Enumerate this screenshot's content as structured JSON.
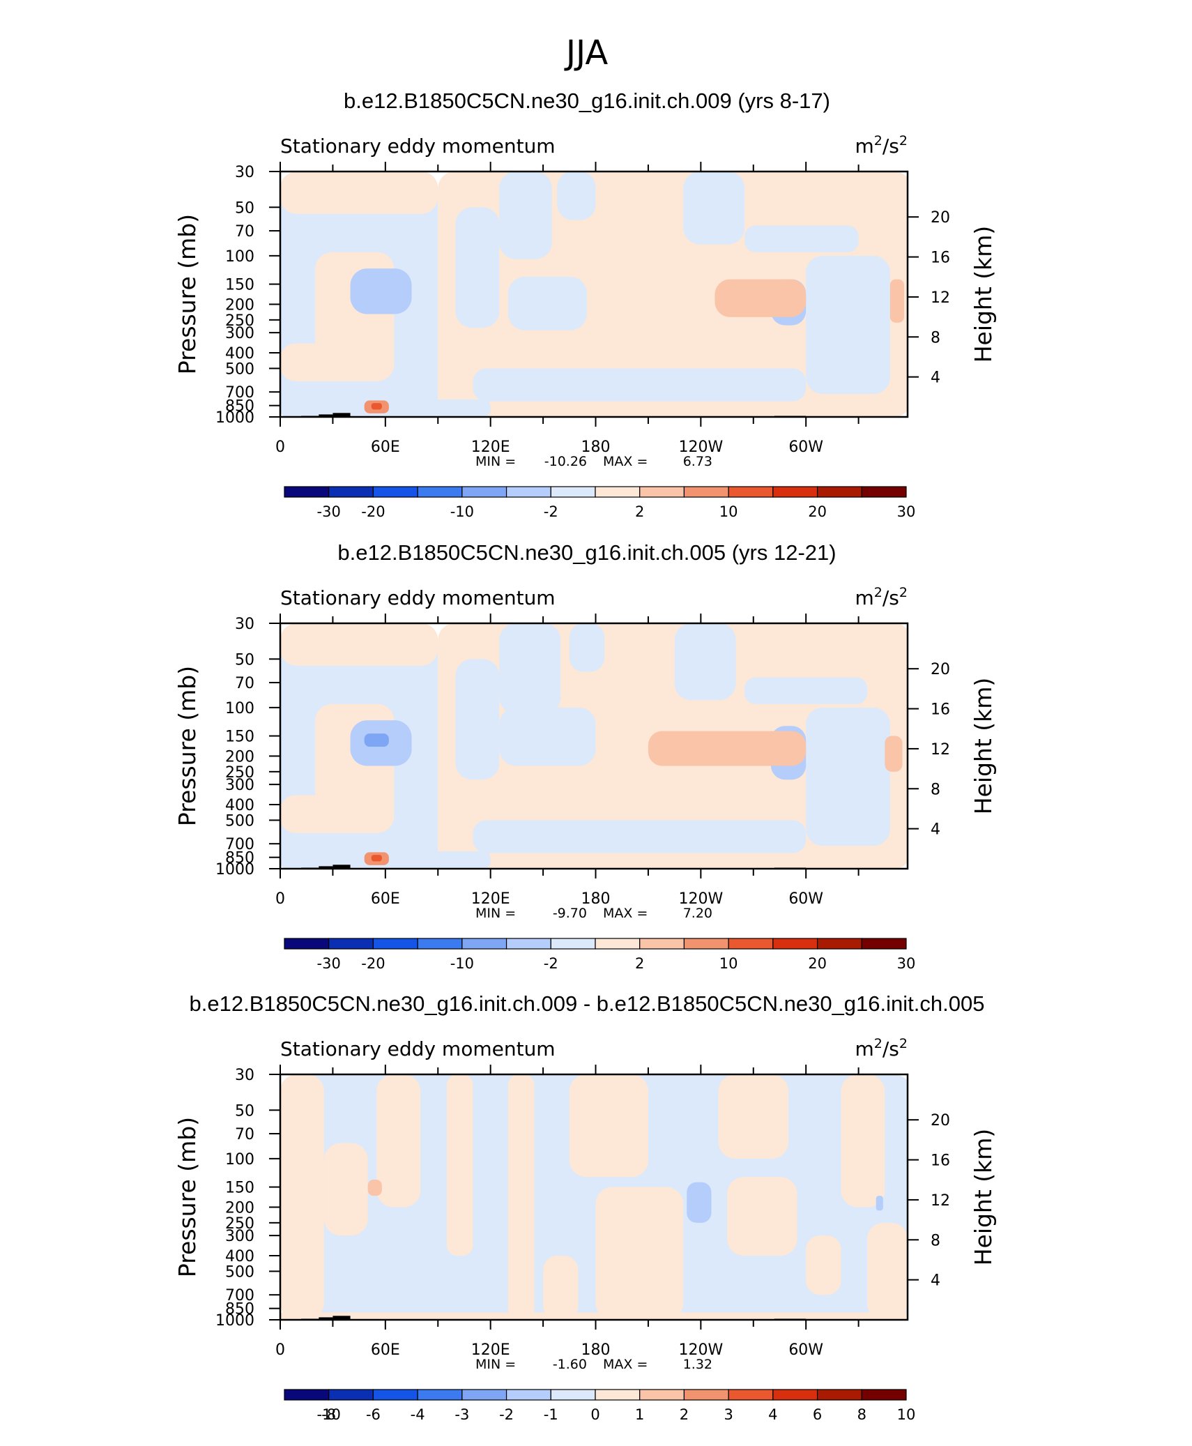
{
  "figure_title": "JJA",
  "colors": {
    "palette_12": [
      "#08087a",
      "#0a2fb3",
      "#1454e6",
      "#3c7af0",
      "#7fa6f5",
      "#b4cdfa",
      "#dce9fb",
      "#fde7d6",
      "#f9c4a8",
      "#f2936f",
      "#e9582e",
      "#d8300e",
      "#a91a03",
      "#740000"
    ],
    "palette_diff": [
      "#08087a",
      "#0a2fb3",
      "#1454e6",
      "#3c7af0",
      "#7fa6f5",
      "#b4cdfa",
      "#dce9fb",
      "#fde7d6",
      "#f9c4a8",
      "#f2936f",
      "#e9582e",
      "#d8300e",
      "#a91a03",
      "#740000"
    ],
    "topography": "#000000"
  },
  "chart_data": [
    {
      "type": "heatmap",
      "title": "b.e12.B1850C5CN.ne30_g16.init.ch.009 (yrs 8-17)",
      "left_string": "Stationary eddy momentum",
      "units_base": "m",
      "units_mid": "2",
      "units_slash": "/s",
      "units_exp": "2",
      "ylabel": "Pressure (mb)",
      "ylabel_right": "Height (km)",
      "xlabel": "",
      "x_ticks": [
        {
          "lon": 0,
          "label": "0"
        },
        {
          "lon": 60,
          "label": "60E"
        },
        {
          "lon": 120,
          "label": "120E"
        },
        {
          "lon": 180,
          "label": "180"
        },
        {
          "lon": 240,
          "label": "120W"
        },
        {
          "lon": 300,
          "label": "60W"
        }
      ],
      "p_ticks": [
        {
          "p": 30,
          "label": "30"
        },
        {
          "p": 50,
          "label": "50"
        },
        {
          "p": 70,
          "label": "70"
        },
        {
          "p": 100,
          "label": "100"
        },
        {
          "p": 150,
          "label": "150"
        },
        {
          "p": 200,
          "label": "200"
        },
        {
          "p": 250,
          "label": "250"
        },
        {
          "p": 300,
          "label": "300"
        },
        {
          "p": 400,
          "label": "400"
        },
        {
          "p": 500,
          "label": "500"
        },
        {
          "p": 700,
          "label": "700"
        },
        {
          "p": 850,
          "label": "850"
        },
        {
          "p": 1000,
          "label": "1000"
        }
      ],
      "height_ticks": [
        {
          "km": 4,
          "label": "4"
        },
        {
          "km": 8,
          "label": "8"
        },
        {
          "km": 12,
          "label": "12"
        },
        {
          "km": 16,
          "label": "16"
        },
        {
          "km": 20,
          "label": "20"
        }
      ],
      "xlim": [
        0,
        358
      ],
      "plim": [
        30,
        1000
      ],
      "min_label": "MIN =",
      "min_value": "-10.26",
      "max_label": "MAX =",
      "max_value": "6.73",
      "levels": [
        -30,
        -25,
        -20,
        -15,
        -10,
        -5,
        -2,
        0,
        2,
        5,
        10,
        15,
        20,
        25,
        30
      ],
      "colorbar_labels": [
        "-30",
        "-20",
        "-10",
        "-2",
        "2",
        "10",
        "20",
        "30"
      ],
      "colorbar_label_levels": [
        -30,
        -20,
        -10,
        -2,
        2,
        10,
        20,
        30
      ],
      "field_regions": [
        {
          "lon_min": 0,
          "lon_max": 90,
          "p_min": 30,
          "p_max": 1000,
          "bin": 6
        },
        {
          "lon_min": 90,
          "lon_max": 360,
          "p_min": 30,
          "p_max": 1000,
          "bin": 7
        },
        {
          "lon_min": 0,
          "lon_max": 90,
          "p_min": 30,
          "p_max": 55,
          "bin": 7
        },
        {
          "lon_min": 20,
          "lon_max": 65,
          "p_min": 95,
          "p_max": 600,
          "bin": 7
        },
        {
          "lon_min": 0,
          "lon_max": 40,
          "p_min": 350,
          "p_max": 600,
          "bin": 7
        },
        {
          "lon_min": 125,
          "lon_max": 155,
          "p_min": 30,
          "p_max": 105,
          "bin": 6
        },
        {
          "lon_min": 158,
          "lon_max": 180,
          "p_min": 30,
          "p_max": 60,
          "bin": 6
        },
        {
          "lon_min": 100,
          "lon_max": 125,
          "p_min": 50,
          "p_max": 280,
          "bin": 6
        },
        {
          "lon_min": 130,
          "lon_max": 175,
          "p_min": 135,
          "p_max": 290,
          "bin": 6
        },
        {
          "lon_min": 230,
          "lon_max": 265,
          "p_min": 30,
          "p_max": 85,
          "bin": 6
        },
        {
          "lon_min": 265,
          "lon_max": 330,
          "p_min": 65,
          "p_max": 95,
          "bin": 6
        },
        {
          "lon_min": 300,
          "lon_max": 348,
          "p_min": 100,
          "p_max": 720,
          "bin": 6
        },
        {
          "lon_min": 110,
          "lon_max": 300,
          "p_min": 500,
          "p_max": 800,
          "bin": 6
        },
        {
          "lon_min": 0,
          "lon_max": 120,
          "p_min": 780,
          "p_max": 1000,
          "bin": 6
        },
        {
          "lon_min": 40,
          "lon_max": 75,
          "p_min": 120,
          "p_max": 230,
          "bin": 5
        },
        {
          "lon_min": 280,
          "lon_max": 300,
          "p_min": 140,
          "p_max": 270,
          "bin": 5
        },
        {
          "lon_min": 248,
          "lon_max": 300,
          "p_min": 140,
          "p_max": 240,
          "bin": 8
        },
        {
          "lon_min": 348,
          "lon_max": 356,
          "p_min": 140,
          "p_max": 260,
          "bin": 8
        },
        {
          "lon_min": 48,
          "lon_max": 62,
          "p_min": 790,
          "p_max": 950,
          "bin": 9
        },
        {
          "lon_min": 52,
          "lon_max": 58,
          "p_min": 820,
          "p_max": 900,
          "bin": 10
        }
      ],
      "topography": [
        {
          "lon_min": 12,
          "lon_max": 22,
          "p_top": 985
        },
        {
          "lon_min": 22,
          "lon_max": 30,
          "p_top": 965
        },
        {
          "lon_min": 30,
          "lon_max": 40,
          "p_top": 945
        },
        {
          "lon_min": 282,
          "lon_max": 300,
          "p_top": 985
        }
      ]
    },
    {
      "type": "heatmap",
      "title": "b.e12.B1850C5CN.ne30_g16.init.ch.005 (yrs 12-21)",
      "left_string": "Stationary eddy momentum",
      "units_base": "m",
      "units_mid": "2",
      "units_slash": "/s",
      "units_exp": "2",
      "ylabel": "Pressure (mb)",
      "ylabel_right": "Height (km)",
      "xlabel": "",
      "x_ticks": [
        {
          "lon": 0,
          "label": "0"
        },
        {
          "lon": 60,
          "label": "60E"
        },
        {
          "lon": 120,
          "label": "120E"
        },
        {
          "lon": 180,
          "label": "180"
        },
        {
          "lon": 240,
          "label": "120W"
        },
        {
          "lon": 300,
          "label": "60W"
        }
      ],
      "p_ticks": [
        {
          "p": 30,
          "label": "30"
        },
        {
          "p": 50,
          "label": "50"
        },
        {
          "p": 70,
          "label": "70"
        },
        {
          "p": 100,
          "label": "100"
        },
        {
          "p": 150,
          "label": "150"
        },
        {
          "p": 200,
          "label": "200"
        },
        {
          "p": 250,
          "label": "250"
        },
        {
          "p": 300,
          "label": "300"
        },
        {
          "p": 400,
          "label": "400"
        },
        {
          "p": 500,
          "label": "500"
        },
        {
          "p": 700,
          "label": "700"
        },
        {
          "p": 850,
          "label": "850"
        },
        {
          "p": 1000,
          "label": "1000"
        }
      ],
      "height_ticks": [
        {
          "km": 4,
          "label": "4"
        },
        {
          "km": 8,
          "label": "8"
        },
        {
          "km": 12,
          "label": "12"
        },
        {
          "km": 16,
          "label": "16"
        },
        {
          "km": 20,
          "label": "20"
        }
      ],
      "xlim": [
        0,
        358
      ],
      "plim": [
        30,
        1000
      ],
      "min_label": "MIN =",
      "min_value": "-9.70",
      "max_label": "MAX =",
      "max_value": "7.20",
      "levels": [
        -30,
        -25,
        -20,
        -15,
        -10,
        -5,
        -2,
        0,
        2,
        5,
        10,
        15,
        20,
        25,
        30
      ],
      "colorbar_labels": [
        "-30",
        "-20",
        "-10",
        "-2",
        "2",
        "10",
        "20",
        "30"
      ],
      "colorbar_label_levels": [
        -30,
        -20,
        -10,
        -2,
        2,
        10,
        20,
        30
      ],
      "field_regions": [
        {
          "lon_min": 0,
          "lon_max": 90,
          "p_min": 30,
          "p_max": 1000,
          "bin": 6
        },
        {
          "lon_min": 90,
          "lon_max": 360,
          "p_min": 30,
          "p_max": 1000,
          "bin": 7
        },
        {
          "lon_min": 0,
          "lon_max": 90,
          "p_min": 30,
          "p_max": 55,
          "bin": 7
        },
        {
          "lon_min": 20,
          "lon_max": 65,
          "p_min": 95,
          "p_max": 600,
          "bin": 7
        },
        {
          "lon_min": 0,
          "lon_max": 40,
          "p_min": 350,
          "p_max": 600,
          "bin": 7
        },
        {
          "lon_min": 125,
          "lon_max": 160,
          "p_min": 30,
          "p_max": 110,
          "bin": 6
        },
        {
          "lon_min": 165,
          "lon_max": 185,
          "p_min": 30,
          "p_max": 60,
          "bin": 6
        },
        {
          "lon_min": 100,
          "lon_max": 125,
          "p_min": 50,
          "p_max": 280,
          "bin": 6
        },
        {
          "lon_min": 125,
          "lon_max": 180,
          "p_min": 100,
          "p_max": 230,
          "bin": 6
        },
        {
          "lon_min": 225,
          "lon_max": 260,
          "p_min": 30,
          "p_max": 90,
          "bin": 6
        },
        {
          "lon_min": 265,
          "lon_max": 335,
          "p_min": 65,
          "p_max": 95,
          "bin": 6
        },
        {
          "lon_min": 300,
          "lon_max": 348,
          "p_min": 100,
          "p_max": 720,
          "bin": 6
        },
        {
          "lon_min": 110,
          "lon_max": 300,
          "p_min": 500,
          "p_max": 800,
          "bin": 6
        },
        {
          "lon_min": 0,
          "lon_max": 120,
          "p_min": 780,
          "p_max": 1000,
          "bin": 6
        },
        {
          "lon_min": 40,
          "lon_max": 75,
          "p_min": 120,
          "p_max": 230,
          "bin": 5
        },
        {
          "lon_min": 48,
          "lon_max": 62,
          "p_min": 145,
          "p_max": 175,
          "bin": 4
        },
        {
          "lon_min": 280,
          "lon_max": 300,
          "p_min": 130,
          "p_max": 280,
          "bin": 5
        },
        {
          "lon_min": 210,
          "lon_max": 300,
          "p_min": 140,
          "p_max": 230,
          "bin": 8
        },
        {
          "lon_min": 345,
          "lon_max": 355,
          "p_min": 150,
          "p_max": 250,
          "bin": 8
        },
        {
          "lon_min": 48,
          "lon_max": 62,
          "p_min": 790,
          "p_max": 950,
          "bin": 9
        },
        {
          "lon_min": 52,
          "lon_max": 58,
          "p_min": 820,
          "p_max": 900,
          "bin": 10
        }
      ],
      "topography": [
        {
          "lon_min": 12,
          "lon_max": 22,
          "p_top": 985
        },
        {
          "lon_min": 22,
          "lon_max": 30,
          "p_top": 965
        },
        {
          "lon_min": 30,
          "lon_max": 40,
          "p_top": 945
        },
        {
          "lon_min": 282,
          "lon_max": 300,
          "p_top": 985
        }
      ]
    },
    {
      "type": "heatmap",
      "title": "b.e12.B1850C5CN.ne30_g16.init.ch.009 - b.e12.B1850C5CN.ne30_g16.init.ch.005",
      "left_string": "Stationary eddy momentum",
      "units_base": "m",
      "units_mid": "2",
      "units_slash": "/s",
      "units_exp": "2",
      "ylabel": "Pressure (mb)",
      "ylabel_right": "Height (km)",
      "xlabel": "",
      "x_ticks": [
        {
          "lon": 0,
          "label": "0"
        },
        {
          "lon": 60,
          "label": "60E"
        },
        {
          "lon": 120,
          "label": "120E"
        },
        {
          "lon": 180,
          "label": "180"
        },
        {
          "lon": 240,
          "label": "120W"
        },
        {
          "lon": 300,
          "label": "60W"
        }
      ],
      "p_ticks": [
        {
          "p": 30,
          "label": "30"
        },
        {
          "p": 50,
          "label": "50"
        },
        {
          "p": 70,
          "label": "70"
        },
        {
          "p": 100,
          "label": "100"
        },
        {
          "p": 150,
          "label": "150"
        },
        {
          "p": 200,
          "label": "200"
        },
        {
          "p": 250,
          "label": "250"
        },
        {
          "p": 300,
          "label": "300"
        },
        {
          "p": 400,
          "label": "400"
        },
        {
          "p": 500,
          "label": "500"
        },
        {
          "p": 700,
          "label": "700"
        },
        {
          "p": 850,
          "label": "850"
        },
        {
          "p": 1000,
          "label": "1000"
        }
      ],
      "height_ticks": [
        {
          "km": 4,
          "label": "4"
        },
        {
          "km": 8,
          "label": "8"
        },
        {
          "km": 12,
          "label": "12"
        },
        {
          "km": 16,
          "label": "16"
        },
        {
          "km": 20,
          "label": "20"
        }
      ],
      "xlim": [
        0,
        358
      ],
      "plim": [
        30,
        1000
      ],
      "min_label": "MIN =",
      "min_value": "-1.60",
      "max_label": "MAX =",
      "max_value": "1.32",
      "levels": [
        -10,
        -8,
        -6,
        -4,
        -3,
        -2,
        -1,
        0,
        1,
        2,
        3,
        4,
        6,
        8,
        10
      ],
      "colorbar_labels": [
        "-10",
        "-8",
        "-6",
        "-4",
        "-3",
        "-2",
        "-1",
        "0",
        "1",
        "2",
        "3",
        "4",
        "6",
        "8",
        "10"
      ],
      "colorbar_label_levels": [
        -10,
        -8,
        -6,
        -4,
        -3,
        -2,
        -1,
        0,
        1,
        2,
        3,
        4,
        6,
        8,
        10
      ],
      "field_regions": [
        {
          "lon_min": 0,
          "lon_max": 360,
          "p_min": 30,
          "p_max": 1000,
          "bin": 6
        },
        {
          "lon_min": 0,
          "lon_max": 25,
          "p_min": 30,
          "p_max": 1000,
          "bin": 7
        },
        {
          "lon_min": 25,
          "lon_max": 50,
          "p_min": 80,
          "p_max": 300,
          "bin": 7
        },
        {
          "lon_min": 55,
          "lon_max": 80,
          "p_min": 30,
          "p_max": 200,
          "bin": 7
        },
        {
          "lon_min": 95,
          "lon_max": 110,
          "p_min": 30,
          "p_max": 400,
          "bin": 7
        },
        {
          "lon_min": 130,
          "lon_max": 145,
          "p_min": 30,
          "p_max": 1000,
          "bin": 7
        },
        {
          "lon_min": 150,
          "lon_max": 170,
          "p_min": 400,
          "p_max": 1000,
          "bin": 7
        },
        {
          "lon_min": 165,
          "lon_max": 210,
          "p_min": 30,
          "p_max": 130,
          "bin": 7
        },
        {
          "lon_min": 180,
          "lon_max": 230,
          "p_min": 150,
          "p_max": 1000,
          "bin": 7
        },
        {
          "lon_min": 250,
          "lon_max": 290,
          "p_min": 30,
          "p_max": 100,
          "bin": 7
        },
        {
          "lon_min": 255,
          "lon_max": 295,
          "p_min": 130,
          "p_max": 400,
          "bin": 7
        },
        {
          "lon_min": 300,
          "lon_max": 320,
          "p_min": 300,
          "p_max": 700,
          "bin": 7
        },
        {
          "lon_min": 320,
          "lon_max": 345,
          "p_min": 30,
          "p_max": 200,
          "bin": 7
        },
        {
          "lon_min": 335,
          "lon_max": 358,
          "p_min": 250,
          "p_max": 1000,
          "bin": 7
        },
        {
          "lon_min": 0,
          "lon_max": 360,
          "p_min": 900,
          "p_max": 1000,
          "bin": 7
        },
        {
          "lon_min": 50,
          "lon_max": 58,
          "p_min": 135,
          "p_max": 170,
          "bin": 8
        },
        {
          "lon_min": 232,
          "lon_max": 246,
          "p_min": 140,
          "p_max": 250,
          "bin": 5
        },
        {
          "lon_min": 340,
          "lon_max": 344,
          "p_min": 170,
          "p_max": 210,
          "bin": 5
        }
      ],
      "topography": [
        {
          "lon_min": 12,
          "lon_max": 22,
          "p_top": 985
        },
        {
          "lon_min": 22,
          "lon_max": 30,
          "p_top": 965
        },
        {
          "lon_min": 30,
          "lon_max": 40,
          "p_top": 945
        },
        {
          "lon_min": 282,
          "lon_max": 300,
          "p_top": 985
        }
      ]
    }
  ]
}
